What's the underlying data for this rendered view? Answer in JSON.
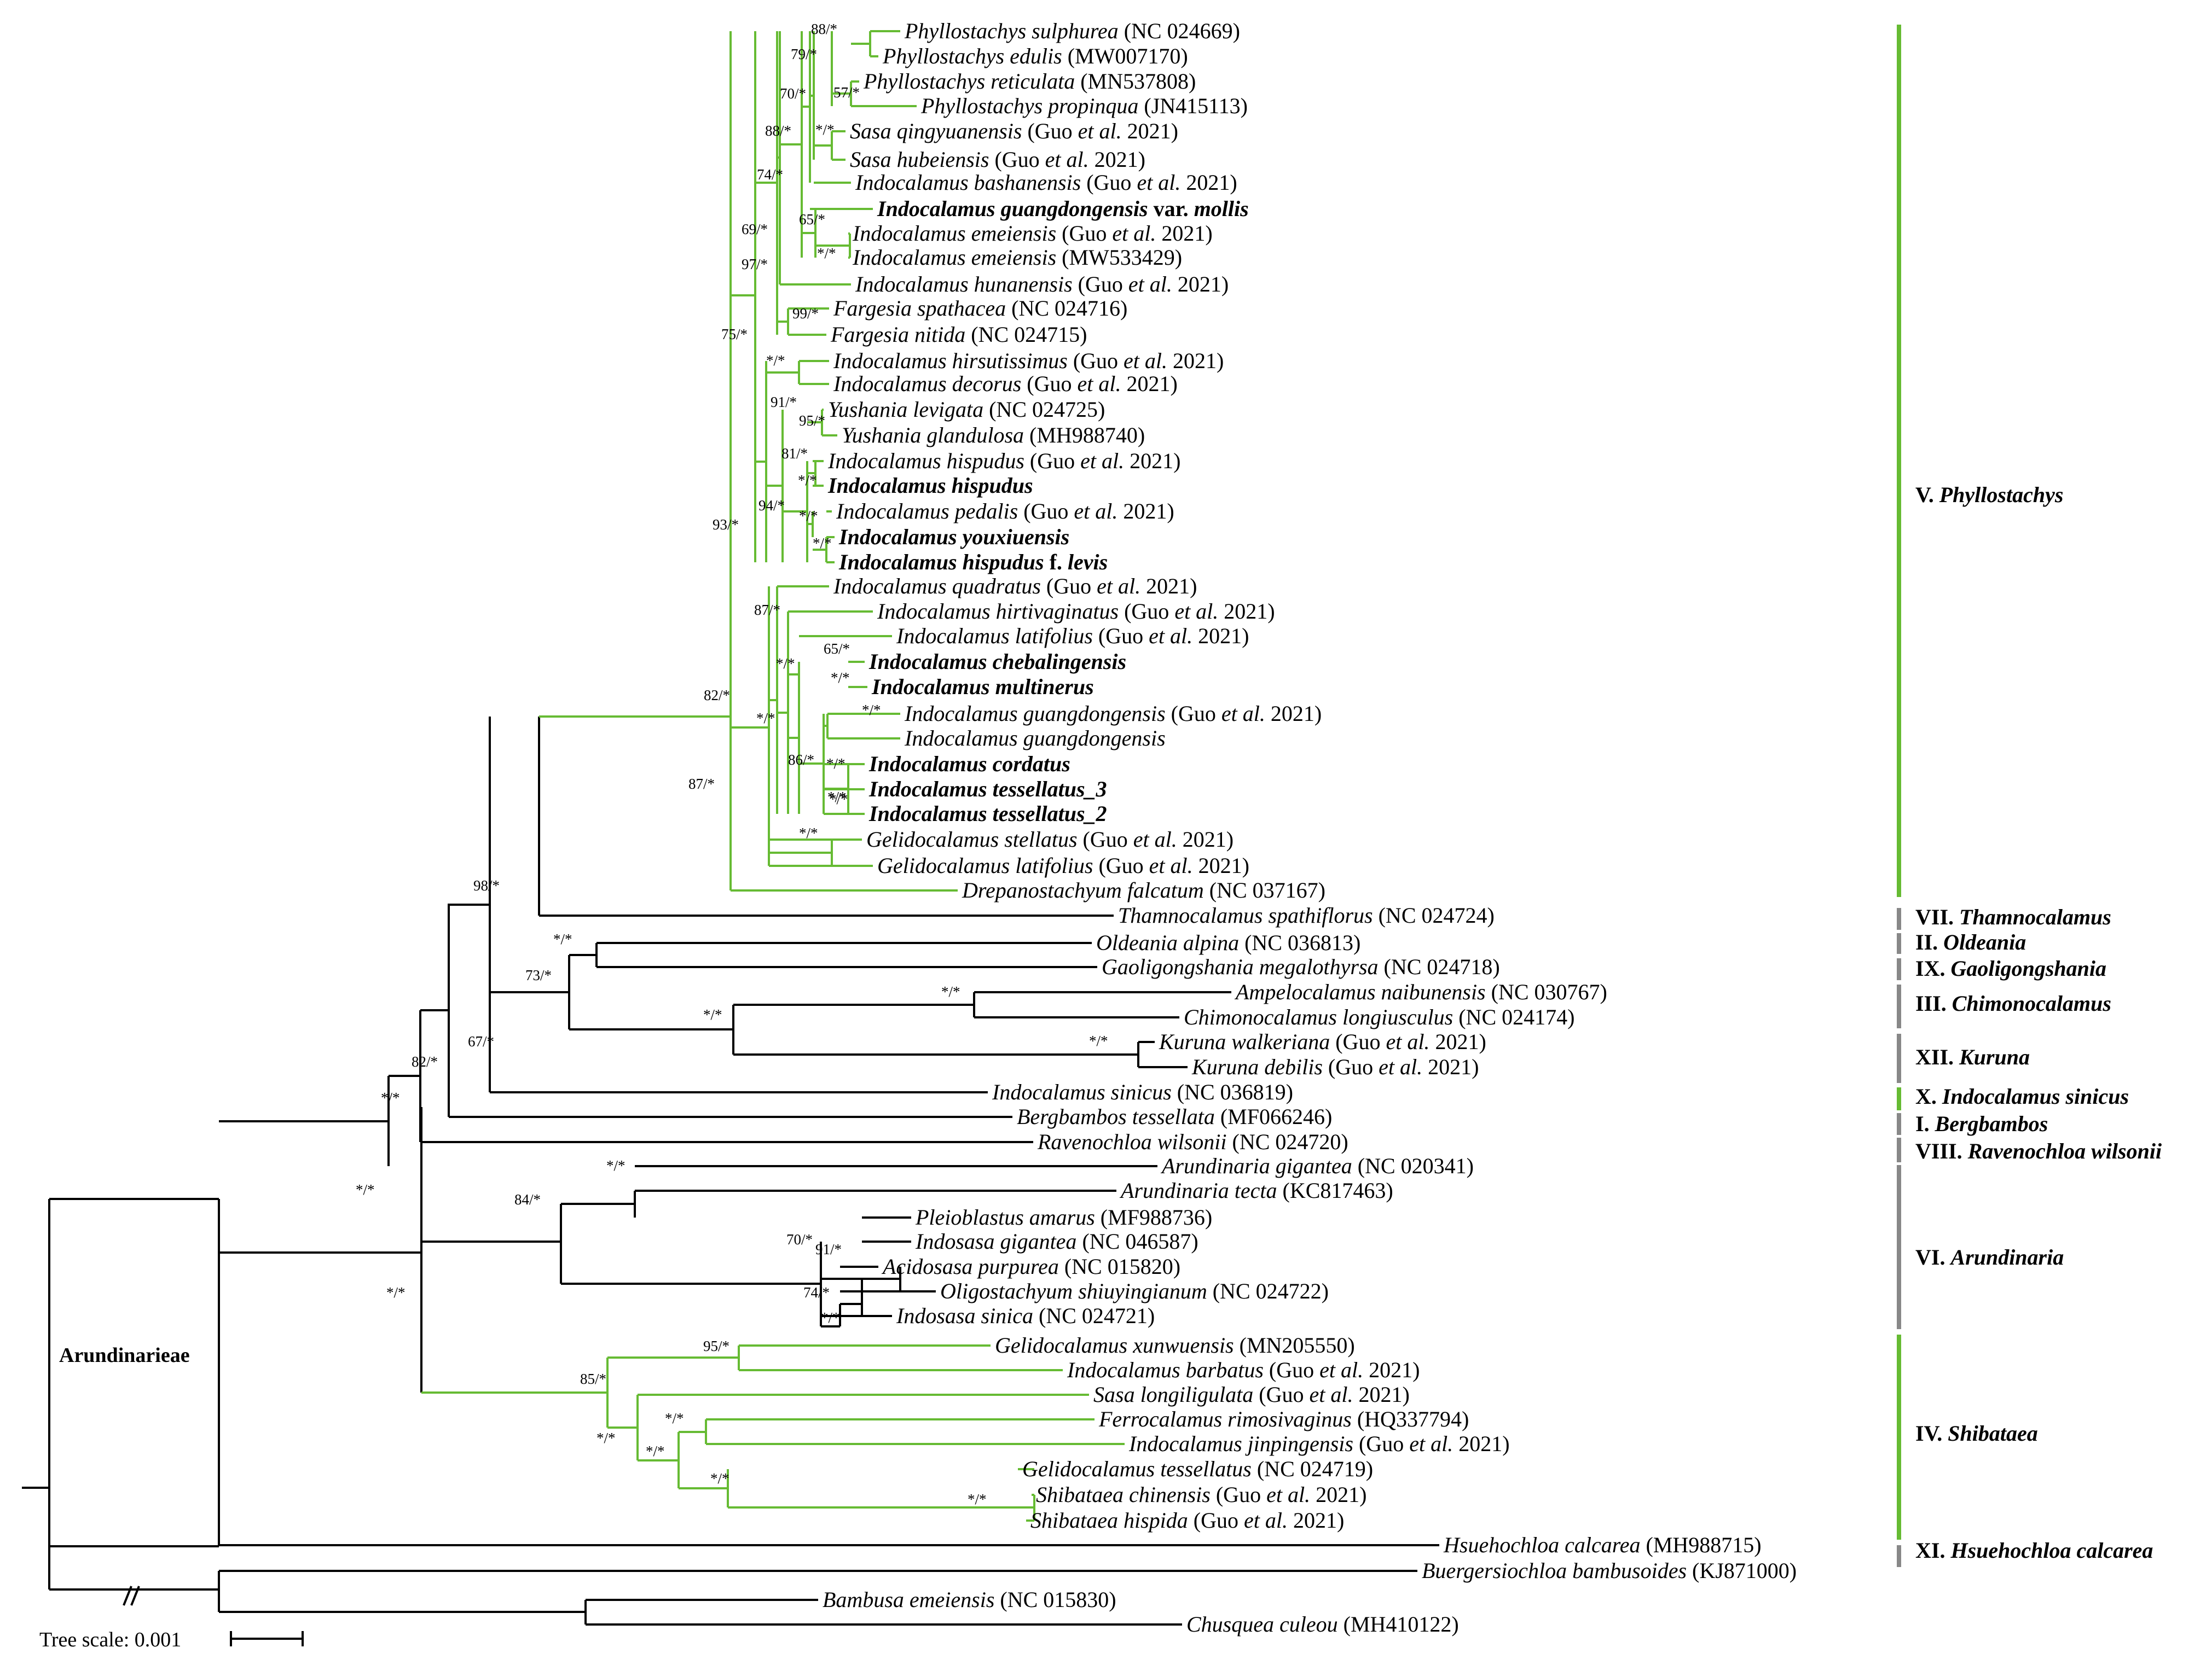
{
  "tribe_label": "Arundinarieae",
  "tree_scale": "Tree scale: 0.001",
  "colors": {
    "green": "#66bb33",
    "black": "#000000",
    "gray": "#888888"
  },
  "taxa": [
    {
      "pre": "Phyllostachys sulphurea",
      "post": " (NC 024669)"
    },
    {
      "pre": "Phyllostachys edulis",
      "post": " (MW007170)"
    },
    {
      "pre": "Phyllostachys reticulata",
      "post": " (MN537808)"
    },
    {
      "pre": "Phyllostachys propinqua",
      "post": " (JN415113)"
    },
    {
      "pre": "Sasa qingyuanensis",
      "post": " (Guo ",
      "etal": "et al.",
      "tail": " 2021)"
    },
    {
      "pre": "Sasa hubeiensis",
      "post": " (Guo ",
      "etal": "et al.",
      "tail": " 2021)"
    },
    {
      "pre": "Indocalamus bashanensis",
      "post": " (Guo ",
      "etal": "et al.",
      "tail": " 2021)"
    },
    {
      "pre": "Indocalamus guangdongensis",
      "post": " var. ",
      "etal": "mollis",
      "tail": "",
      "bold": true
    },
    {
      "pre": "Indocalamus emeiensis",
      "post": " (Guo ",
      "etal": "et al.",
      "tail": " 2021)"
    },
    {
      "pre": "Indocalamus emeiensis",
      "post": "  (MW533429)"
    },
    {
      "pre": "Indocalamus hunanensis",
      "post": " (Guo ",
      "etal": "et al.",
      "tail": " 2021)"
    },
    {
      "pre": "Fargesia spathacea",
      "post": " (NC 024716)"
    },
    {
      "pre": "Fargesia nitida",
      "post": " (NC 024715)"
    },
    {
      "pre": "Indocalamus hirsutissimus",
      "post": " (Guo ",
      "etal": "et al.",
      "tail": " 2021)"
    },
    {
      "pre": "Indocalamus decorus",
      "post": " (Guo ",
      "etal": "et al.",
      "tail": " 2021)"
    },
    {
      "pre": "Yushania levigata",
      "post": " (NC 024725)"
    },
    {
      "pre": "Yushania glandulosa",
      "post": " (MH988740)"
    },
    {
      "pre": "Indocalamus hispudus",
      "post": " (Guo ",
      "etal": "et al.",
      "tail": " 2021)"
    },
    {
      "pre": "Indocalamus hispudus",
      "post": "",
      "bold": true
    },
    {
      "pre": "Indocalamus pedalis",
      "post": " (Guo ",
      "etal": "et al.",
      "tail": " 2021)"
    },
    {
      "pre": "Indocalamus youxiuensis",
      "post": "",
      "bold": true
    },
    {
      "pre": "Indocalamus hispudus",
      "post": " f. ",
      "etal": "levis",
      "tail": "",
      "bold": true
    },
    {
      "pre": "Indocalamus quadratus",
      "post": " (Guo ",
      "etal": "et al.",
      "tail": " 2021)"
    },
    {
      "pre": "Indocalamus hirtivaginatus",
      "post": " (Guo ",
      "etal": "et al.",
      "tail": " 2021)"
    },
    {
      "pre": "Indocalamus latifolius",
      "post": " (Guo ",
      "etal": "et al.",
      "tail": " 2021)"
    },
    {
      "pre": "Indocalamus chebalingensis",
      "post": "",
      "bold": true
    },
    {
      "pre": "Indocalamus multinerus",
      "post": "",
      "bold": true
    },
    {
      "pre": "Indocalamus guangdongensis",
      "post": " (Guo ",
      "etal": "et al.",
      "tail": " 2021)"
    },
    {
      "pre": "Indocalamus guangdongensis",
      "post": ""
    },
    {
      "pre": "Indocalamus cordatus",
      "post": "",
      "bold": true
    },
    {
      "pre": "Indocalamus tessellatus_3",
      "post": "",
      "bold": true
    },
    {
      "pre": "Indocalamus tessellatus_2",
      "post": "",
      "bold": true
    },
    {
      "pre": "Gelidocalamus stellatus",
      "post": " (Guo ",
      "etal": "et al.",
      "tail": " 2021)"
    },
    {
      "pre": "Gelidocalamus latifolius",
      "post": " (Guo ",
      "etal": "et al.",
      "tail": " 2021)"
    },
    {
      "pre": "Drepanostachyum falcatum",
      "post": " (NC 037167)"
    },
    {
      "pre": "Thamnocalamus spathiflorus",
      "post": " (NC 024724)"
    },
    {
      "pre": "Oldeania alpina",
      "post": " (NC 036813)"
    },
    {
      "pre": "Gaoligongshania megalothyrsa",
      "post": " (NC 024718)"
    },
    {
      "pre": "Ampelocalamus naibunensis",
      "post": " (NC 030767)"
    },
    {
      "pre": "Chimonocalamus longiusculus",
      "post": " (NC 024174)"
    },
    {
      "pre": "Kuruna walkeriana",
      "post": " (Guo ",
      "etal": "et al.",
      "tail": " 2021)"
    },
    {
      "pre": "Kuruna debilis",
      "post": " (Guo ",
      "etal": "et al.",
      "tail": " 2021)"
    },
    {
      "pre": "Indocalamus sinicus",
      "post": " (NC 036819)"
    },
    {
      "pre": "Bergbambos tessellata",
      "post": " (MF066246)"
    },
    {
      "pre": "Ravenochloa wilsonii",
      "post": " (NC 024720)"
    },
    {
      "pre": "Arundinaria gigantea",
      "post": " (NC 020341)"
    },
    {
      "pre": "Arundinaria tecta",
      "post": " (KC817463)"
    },
    {
      "pre": "Pleioblastus amarus",
      "post": " (MF988736)"
    },
    {
      "pre": "Indosasa gigantea",
      "post": " (NC 046587)"
    },
    {
      "pre": "Acidosasa purpurea",
      "post": " (NC 015820)"
    },
    {
      "pre": "Oligostachyum shiuyingianum",
      "post": " (NC 024722)"
    },
    {
      "pre": "Indosasa sinica",
      "post": " (NC 024721)"
    },
    {
      "pre": "Gelidocalamus xunwuensis",
      "post": " (MN205550)"
    },
    {
      "pre": "Indocalamus barbatus",
      "post": " (Guo ",
      "etal": "et al.",
      "tail": " 2021)"
    },
    {
      "pre": "Sasa longiligulata",
      "post": " (Guo ",
      "etal": "et al.",
      "tail": " 2021)"
    },
    {
      "pre": "Ferrocalamus rimosivaginus",
      "post": " (HQ337794)"
    },
    {
      "pre": "Indocalamus jinpingensis",
      "post": " (Guo ",
      "etal": "et al.",
      "tail": " 2021)"
    },
    {
      "pre": "Gelidocalamus tessellatus",
      "post": " (NC 024719)"
    },
    {
      "pre": "Shibataea chinensis",
      "post": " (Guo ",
      "etal": "et al.",
      "tail": " 2021)"
    },
    {
      "pre": "Shibataea hispida",
      "post": " (Guo ",
      "etal": "et al.",
      "tail": " 2021)"
    },
    {
      "pre": "Hsuehochloa calcarea",
      "post": " (MH988715)"
    },
    {
      "pre": "Buergersiochloa bambusoides",
      "post": " (KJ871000)"
    },
    {
      "pre": "Bambusa emeiensis",
      "post": " (NC 015830)"
    },
    {
      "pre": "Chusquea culeou",
      "post": " (MH410122)"
    }
  ],
  "supports": [
    "88/*",
    "79/*",
    "57/*",
    "70/*",
    "*/*",
    "88/*",
    "74/*",
    "65/*",
    "69/*",
    "*/*",
    "97/*",
    "99/*",
    "75/*",
    "*/*",
    "91/*",
    "95/*",
    "81/*",
    "*/*",
    "94/*",
    "*/*",
    "93/*",
    "*/*",
    "87/*",
    "65/*",
    "*/*",
    "*/*",
    "*/*",
    "*/*",
    "86/*",
    "*/*",
    "*/*",
    "*/*",
    "*/*",
    "82/*",
    "87/*",
    "98/*",
    "*/*",
    "73/*",
    "*/*",
    "*/*",
    "*/*",
    "67/*",
    "82/*",
    "*/*",
    "*/*",
    "*/*",
    "84/*",
    "70/*",
    "91/*",
    "74/*",
    "*/*",
    "*/*",
    "95/*",
    "85/*",
    "*/*",
    "*/*",
    "*/*",
    "*/*",
    "*/*"
  ],
  "clades": [
    {
      "num": "V.",
      "name": "Phyllostachys"
    },
    {
      "num": "VII.",
      "name": "Thamnocalamus"
    },
    {
      "num": "II.",
      "name": "Oldeania"
    },
    {
      "num": "IX.",
      "name": "Gaoligongshania"
    },
    {
      "num": "III.",
      "name": "Chimonocalamus"
    },
    {
      "num": "XII.",
      "name": "Kuruna"
    },
    {
      "num": "X.",
      "name": "Indocalamus sinicus"
    },
    {
      "num": "I.",
      "name": "Bergbambos"
    },
    {
      "num": "VIII.",
      "name": "Ravenochloa wilsonii"
    },
    {
      "num": "VI.",
      "name": "Arundinaria"
    },
    {
      "num": "IV.",
      "name": "Shibataea"
    },
    {
      "num": "XI.",
      "name": "Hsuehochloa calcarea"
    }
  ]
}
